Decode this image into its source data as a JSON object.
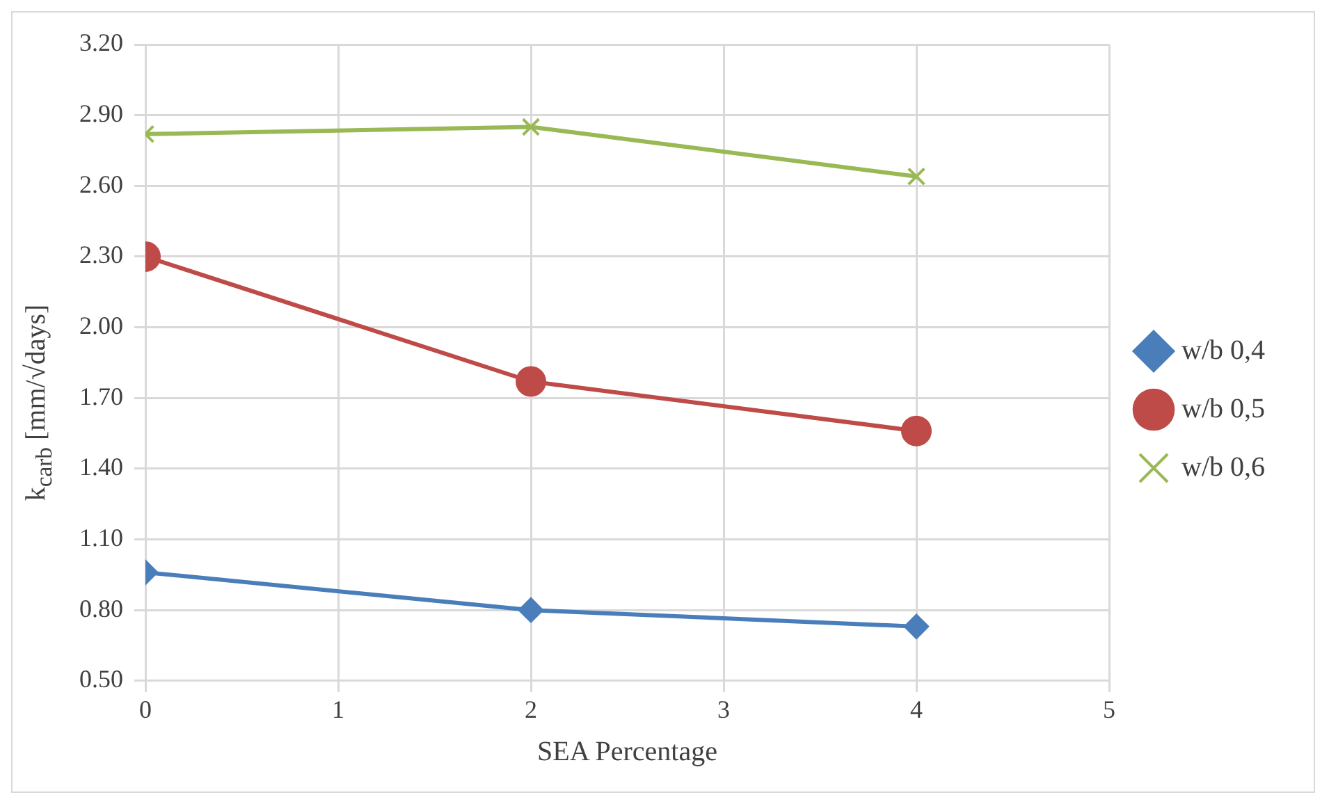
{
  "chart_data": {
    "type": "line",
    "xlabel": "SEA Percentage",
    "ylabel": "k$_{carb}$ [mm/√days]",
    "x": [
      0,
      2,
      4
    ],
    "series": [
      {
        "name": "w/b 0,4",
        "color": "#4a7ebb",
        "marker": "diamond",
        "values": [
          0.96,
          0.8,
          0.73
        ]
      },
      {
        "name": "w/b 0,5",
        "color": "#be4b48",
        "marker": "circle",
        "values": [
          2.3,
          1.77,
          1.56
        ]
      },
      {
        "name": "w/b 0,6",
        "color": "#98b954",
        "marker": "cross",
        "values": [
          2.82,
          2.85,
          2.64
        ]
      }
    ],
    "xlim": [
      0,
      5
    ],
    "xticks": [
      0,
      1,
      2,
      3,
      4,
      5
    ],
    "ylim": [
      0.5,
      3.2
    ],
    "yticks": [
      {
        "value": 0.5,
        "label": "0.50"
      },
      {
        "value": 0.8,
        "label": "0.80"
      },
      {
        "value": 1.1,
        "label": "1.10"
      },
      {
        "value": 1.4,
        "label": "1.40"
      },
      {
        "value": 1.7,
        "label": "1.70"
      },
      {
        "value": 2.0,
        "label": "2.00"
      },
      {
        "value": 2.3,
        "label": "2.30"
      },
      {
        "value": 2.6,
        "label": "2.60"
      },
      {
        "value": 2.9,
        "label": "2.90"
      },
      {
        "value": 3.2,
        "label": "3.20"
      }
    ],
    "grid": true,
    "legend": "right",
    "line_style": "solid"
  }
}
